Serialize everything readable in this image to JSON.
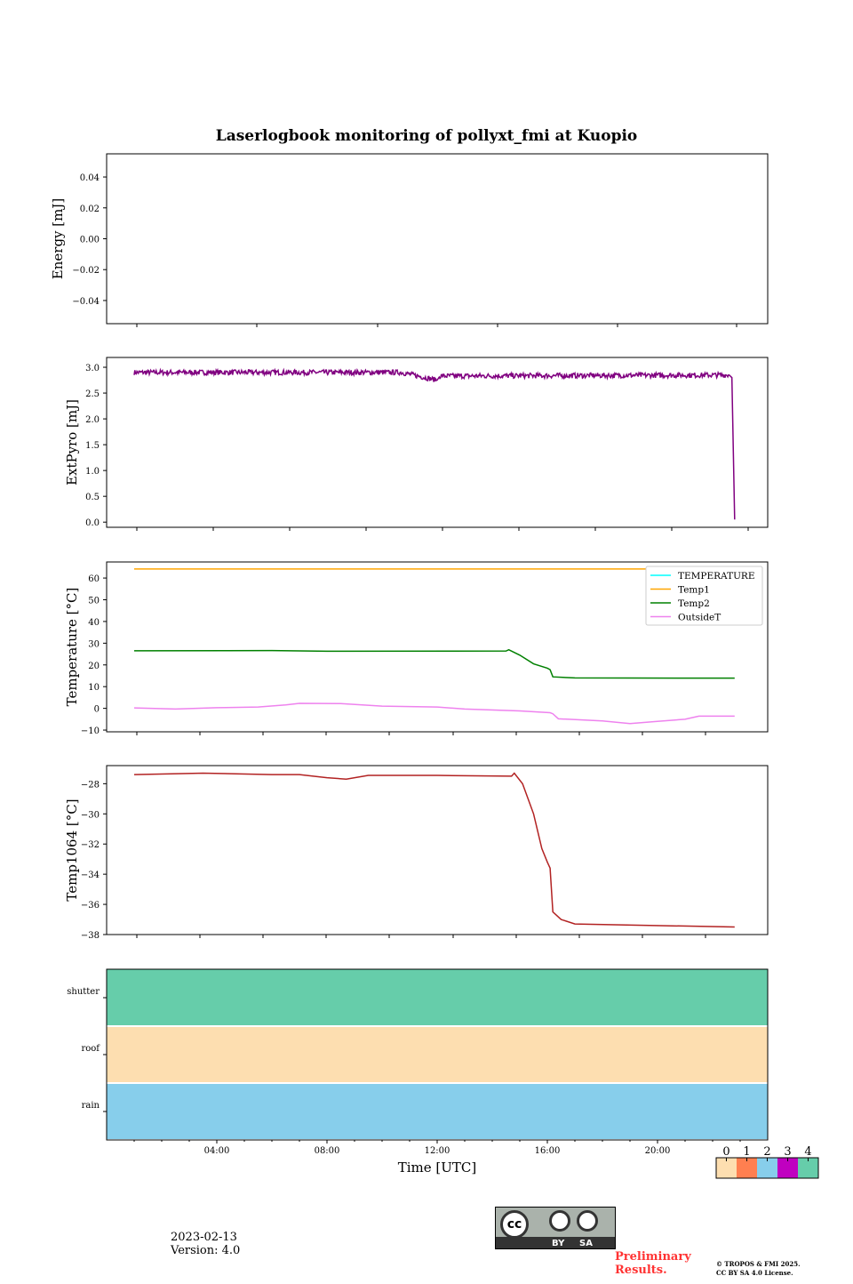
{
  "chart_data": [
    {
      "type": "line",
      "ylabel": "Energy [mJ]",
      "ylim": [
        -0.055,
        0.055
      ],
      "yticks": [
        0.04,
        0.02,
        0.0,
        -0.02,
        -0.04
      ],
      "ytick_labels": [
        "0.04",
        "0.02",
        "0.00",
        "−0.02",
        "−0.04"
      ],
      "series": []
    },
    {
      "type": "line",
      "ylabel": "ExtPyro [mJ]",
      "ylim": [
        -0.1,
        3.19
      ],
      "yticks": [
        3.0,
        2.5,
        2.0,
        1.5,
        1.0,
        0.5,
        0.0
      ],
      "ytick_labels": [
        "3.0",
        "2.5",
        "2.0",
        "1.5",
        "1.0",
        "0.5",
        "0.0"
      ],
      "series": [
        {
          "name": "ExtPyro",
          "color": "#800080",
          "noise": 0.05,
          "x": [
            1.0,
            10.7,
            12.0,
            12.1,
            22.6,
            22.7,
            22.8
          ],
          "y": [
            2.9,
            2.9,
            2.75,
            2.83,
            2.85,
            2.8,
            0.05
          ]
        }
      ]
    },
    {
      "type": "line",
      "ylabel": "Temperature [°C]",
      "ylim": [
        -10.8,
        67.4
      ],
      "yticks": [
        60,
        50,
        40,
        30,
        20,
        10,
        0,
        -10
      ],
      "ytick_labels": [
        "60",
        "50",
        "40",
        "30",
        "20",
        "10",
        "0",
        "−10"
      ],
      "legend": [
        "TEMPERATURE",
        "Temp1",
        "Temp2",
        "OutsideT"
      ],
      "legend_position": "top-right",
      "series": [
        {
          "name": "TEMPERATURE",
          "color": "#00ffff",
          "x": [],
          "y": []
        },
        {
          "name": "Temp1",
          "color": "#ffa500",
          "x": [
            1.0,
            22.8
          ],
          "y": [
            64.2,
            64.2
          ]
        },
        {
          "name": "Temp2",
          "color": "#008000",
          "x": [
            1.0,
            6.0,
            8.0,
            14.5,
            14.6,
            15.0,
            15.5,
            16.0,
            16.1,
            16.2,
            17.0,
            22.8
          ],
          "y": [
            26.5,
            26.6,
            26.3,
            26.4,
            27.0,
            24.5,
            20.5,
            18.5,
            17.8,
            14.5,
            14.0,
            13.9
          ]
        },
        {
          "name": "OutsideT",
          "color": "#ee82ee",
          "x": [
            1.0,
            2.5,
            4.0,
            5.5,
            6.5,
            7.0,
            8.5,
            10.0,
            12.0,
            13.0,
            15.0,
            16.1,
            16.2,
            16.4,
            18.0,
            19.0,
            20.0,
            21.0,
            21.5,
            22.8
          ],
          "y": [
            0.2,
            -0.3,
            0.3,
            0.6,
            1.6,
            2.3,
            2.2,
            1.0,
            0.6,
            -0.3,
            -1.2,
            -2.0,
            -2.5,
            -4.8,
            -5.8,
            -7.0,
            -6.0,
            -5.0,
            -3.6,
            -3.6
          ]
        }
      ]
    },
    {
      "type": "line",
      "ylabel": "Temp1064 [°C]",
      "ylim": [
        -38,
        -26.8
      ],
      "yticks": [
        -28,
        -30,
        -32,
        -34,
        -36,
        -38
      ],
      "ytick_labels": [
        "−28",
        "−30",
        "−32",
        "−34",
        "−36",
        "−38"
      ],
      "series": [
        {
          "name": "Temp1064",
          "color": "#b22222",
          "x": [
            1.0,
            3.5,
            6.0,
            7.0,
            8.0,
            8.7,
            9.5,
            12.0,
            14.7,
            14.8,
            15.1,
            15.5,
            15.8,
            16.0,
            16.1,
            16.2,
            16.5,
            17.0,
            22.8
          ],
          "y": [
            -27.4,
            -27.3,
            -27.4,
            -27.4,
            -27.6,
            -27.7,
            -27.45,
            -27.45,
            -27.5,
            -27.3,
            -28.0,
            -30.0,
            -32.3,
            -33.2,
            -33.6,
            -36.5,
            -37.0,
            -37.3,
            -37.5
          ]
        }
      ]
    },
    {
      "type": "heatmap",
      "categories": [
        "shutter",
        "roof",
        "rain"
      ],
      "values": [
        4,
        0,
        2
      ],
      "xlabel": "Time [UTC]",
      "xlim": [
        0,
        24
      ],
      "xtick_labels": [
        "04:00",
        "08:00",
        "12:00",
        "16:00",
        "20:00"
      ],
      "xticks": [
        4,
        8,
        12,
        16,
        20
      ],
      "colorbar": {
        "labels": [
          "0",
          "1",
          "2",
          "3",
          "4"
        ],
        "colors": [
          "#fddeb0",
          "#ff7f50",
          "#87ceeb",
          "#c000c0",
          "#66cdaa"
        ]
      }
    }
  ],
  "title": "Laserlogbook monitoring of pollyxt_fmi at Kuopio",
  "footer": {
    "date": "2023-02-13",
    "version": "Version: 4.0",
    "preliminary": "Preliminary\nResults.",
    "copyright": "© TROPOS & FMI 2025.",
    "license": "CC BY SA 4.0 License.",
    "cc_by": "BY",
    "cc_sa": "SA"
  }
}
